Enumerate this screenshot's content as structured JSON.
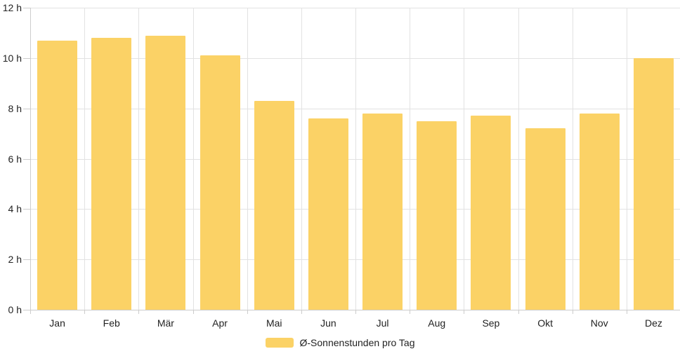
{
  "chart_data": {
    "type": "bar",
    "title": "",
    "categories": [
      "Jan",
      "Feb",
      "Mär",
      "Apr",
      "Mai",
      "Jun",
      "Jul",
      "Aug",
      "Sep",
      "Okt",
      "Nov",
      "Dez"
    ],
    "values": [
      10.7,
      10.8,
      10.9,
      10.1,
      8.3,
      7.6,
      7.8,
      7.5,
      7.7,
      7.2,
      7.8,
      10.0
    ],
    "unit": "h",
    "legend": "Ø-Sonnenstunden pro Tag",
    "legend_position": "bottom",
    "xlabel": "",
    "ylabel": "",
    "ylim": [
      0,
      12
    ],
    "ytick_step": 2,
    "ytick_labels": [
      "0 h",
      "2 h",
      "4 h",
      "6 h",
      "8 h",
      "10 h",
      "12 h"
    ],
    "grid": true,
    "colors": {
      "bar": "#FBD266",
      "gridline": "#e2e2e2",
      "axis": "#cccccc",
      "text": "#222222",
      "background": "#ffffff"
    }
  }
}
